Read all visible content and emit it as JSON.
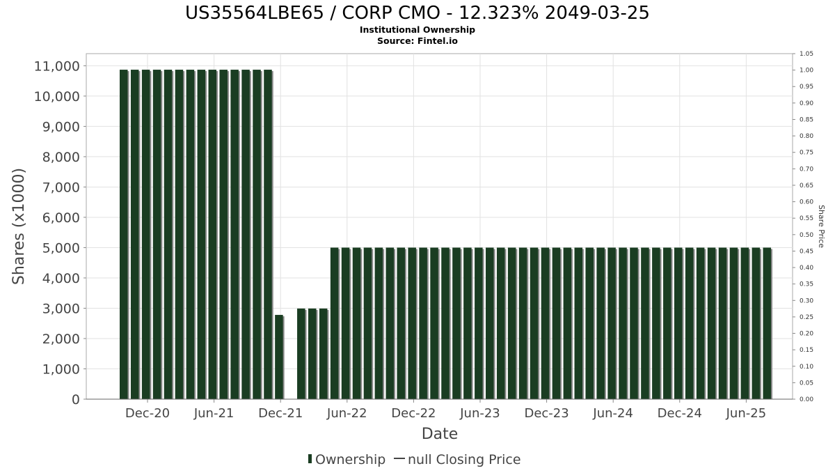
{
  "chart_data": {
    "type": "bar",
    "title": "US35564LBE65 / CORP CMO - 12.323% 2049-03-25",
    "subtitle_lines": [
      "Institutional Ownership",
      "Source: Fintel.io"
    ],
    "xlabel": "Date",
    "ylabel": "Shares (x1000)",
    "y2label": "Share Price",
    "ylim": [
      0,
      11400
    ],
    "y_ticks": [
      0,
      1000,
      2000,
      3000,
      4000,
      5000,
      6000,
      7000,
      8000,
      9000,
      10000,
      11000
    ],
    "y_tick_labels": [
      "0",
      "1,000",
      "2,000",
      "3,000",
      "4,000",
      "5,000",
      "6,000",
      "7,000",
      "8,000",
      "9,000",
      "10,000",
      "11,000"
    ],
    "y2lim": [
      0,
      1.05
    ],
    "y2_tick_labels": [
      "0.00",
      "0.05",
      "0.10",
      "0.15",
      "0.20",
      "0.25",
      "0.30",
      "0.35",
      "0.40",
      "0.45",
      "0.50",
      "0.55",
      "0.60",
      "0.65",
      "0.70",
      "0.75",
      "0.80",
      "0.85",
      "0.90",
      "0.95",
      "1.00",
      "1.05"
    ],
    "x_tick_labels": [
      "Dec-20",
      "Jun-21",
      "Dec-21",
      "Jun-22",
      "Dec-22",
      "Jun-23",
      "Dec-23",
      "Jun-24",
      "Dec-24",
      "Jun-25"
    ],
    "grid": true,
    "legend_position": "bottom",
    "series": [
      {
        "name": "Ownership",
        "color": "#1a3d22",
        "values": [
          10870,
          10870,
          10870,
          10870,
          10870,
          10870,
          10870,
          10870,
          10870,
          10870,
          10870,
          10870,
          10870,
          10870,
          2780,
          0,
          2990,
          2990,
          2990,
          5000,
          5000,
          5000,
          5000,
          5000,
          5000,
          5000,
          5000,
          5000,
          5000,
          5000,
          5000,
          5000,
          5000,
          5000,
          5000,
          5000,
          5000,
          5000,
          5000,
          5000,
          5000,
          5000,
          5000,
          5000,
          5000,
          5000,
          5000,
          5000,
          5000,
          5000,
          5000,
          5000,
          5000,
          5000,
          5000,
          5000,
          5000,
          5000,
          5000
        ]
      },
      {
        "name": "null Closing Price",
        "color": "#444444",
        "values": []
      }
    ]
  }
}
